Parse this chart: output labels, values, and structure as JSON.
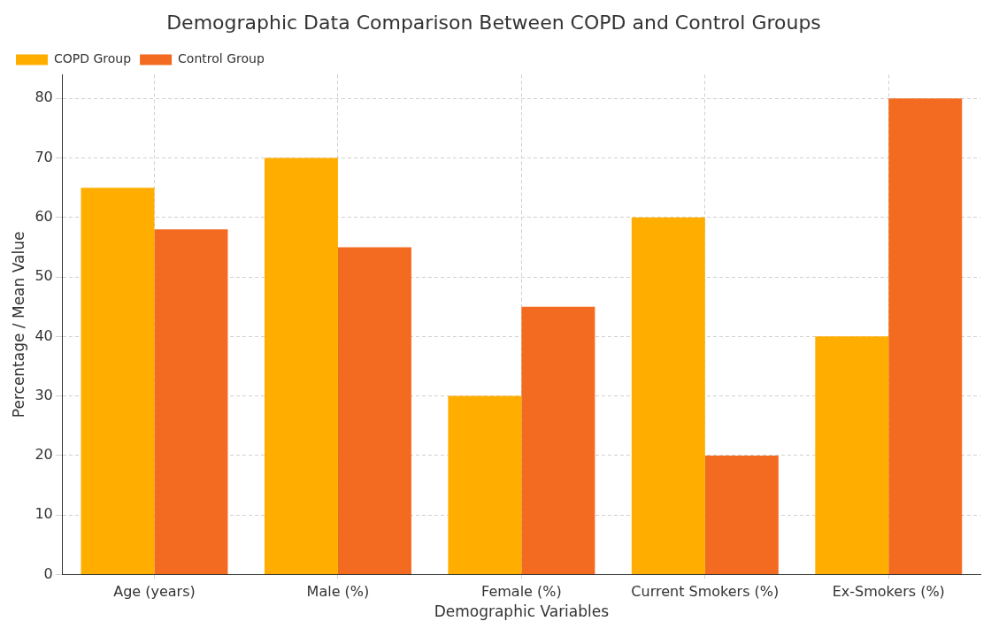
{
  "chart_data": {
    "type": "bar",
    "title": "Demographic Data Comparison Between COPD and Control Groups",
    "xlabel": "Demographic Variables",
    "ylabel": "Percentage / Mean Value",
    "categories": [
      "Age (years)",
      "Male (%)",
      "Female (%)",
      "Current Smokers (%)",
      "Ex-Smokers (%)"
    ],
    "series": [
      {
        "name": "COPD Group",
        "color": "#ffae00",
        "values": [
          65,
          70,
          30,
          60,
          40
        ]
      },
      {
        "name": "Control Group",
        "color": "#f26b21",
        "values": [
          58,
          55,
          45,
          20,
          80
        ]
      }
    ],
    "ylim": [
      0,
      84
    ],
    "yticks": [
      0,
      10,
      20,
      30,
      40,
      50,
      60,
      70,
      80
    ],
    "grid": true,
    "legend": "top left"
  }
}
